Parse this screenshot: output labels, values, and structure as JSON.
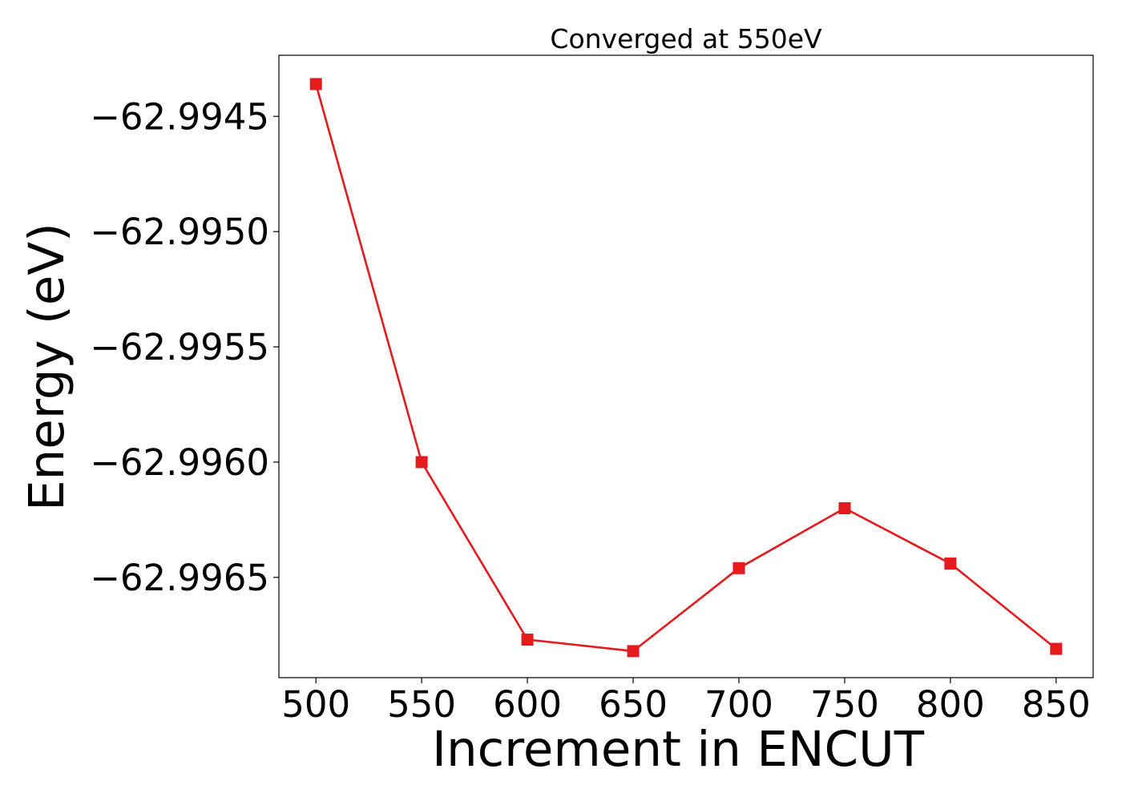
{
  "chart_data": {
    "type": "line",
    "title": "Converged at 550eV",
    "xlabel": "Increment in ENCUT",
    "ylabel": "Energy (eV)",
    "x": [
      500,
      550,
      600,
      650,
      700,
      750,
      800,
      850
    ],
    "series": [
      {
        "values": [
          -62.99436,
          -62.996,
          -62.99677,
          -62.99682,
          -62.99646,
          -62.9962,
          -62.99644,
          -62.99681
        ],
        "color": "#e41a1c",
        "marker": "square"
      }
    ],
    "xticks": [
      "500",
      "550",
      "600",
      "650",
      "700",
      "750",
      "800",
      "850"
    ],
    "yticks": [
      "−62.9945",
      "−62.9950",
      "−62.9955",
      "−62.9960",
      "−62.9965"
    ],
    "xtick_values": [
      500,
      550,
      600,
      650,
      700,
      750,
      800,
      850
    ],
    "ytick_values": [
      -62.9945,
      -62.995,
      -62.9955,
      -62.996,
      -62.9965
    ],
    "xlim": [
      482.5,
      867.5
    ],
    "ylim": [
      -62.996935,
      -62.994235
    ],
    "grid": false,
    "legend": "none"
  }
}
